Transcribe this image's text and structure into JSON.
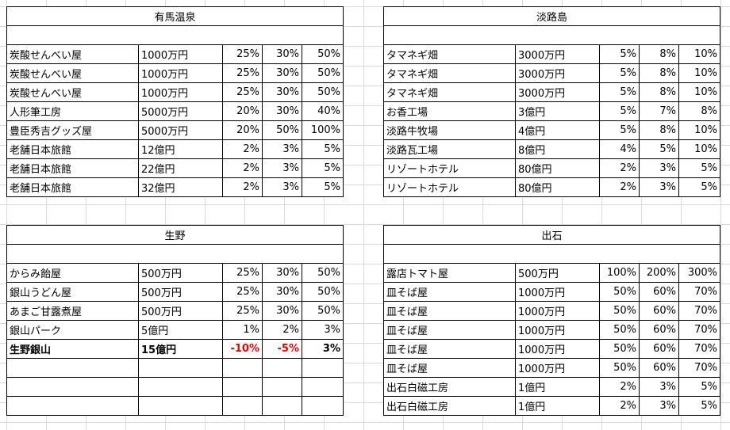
{
  "blocks": [
    {
      "id": "arima",
      "title": "有馬温泉",
      "rows": [
        {
          "name": "炭酸せんべい屋",
          "cost": "1000万円",
          "p1": "25%",
          "p2": "30%",
          "p3": "50%"
        },
        {
          "name": "炭酸せんべい屋",
          "cost": "1000万円",
          "p1": "25%",
          "p2": "30%",
          "p3": "50%"
        },
        {
          "name": "炭酸せんべい屋",
          "cost": "1000万円",
          "p1": "25%",
          "p2": "30%",
          "p3": "50%"
        },
        {
          "name": "人形筆工房",
          "cost": "5000万円",
          "p1": "20%",
          "p2": "30%",
          "p3": "40%"
        },
        {
          "name": "豊臣秀吉グッズ屋",
          "cost": "5000万円",
          "p1": "20%",
          "p2": "50%",
          "p3": "100%"
        },
        {
          "name": "老舗日本旅館",
          "cost": "12億円",
          "p1": "2%",
          "p2": "3%",
          "p3": "5%"
        },
        {
          "name": "老舗日本旅館",
          "cost": "22億円",
          "p1": "2%",
          "p2": "3%",
          "p3": "5%"
        },
        {
          "name": "老舗日本旅館",
          "cost": "32億円",
          "p1": "2%",
          "p2": "3%",
          "p3": "5%"
        }
      ]
    },
    {
      "id": "awaji",
      "title": "淡路島",
      "rows": [
        {
          "name": "タマネギ畑",
          "cost": "3000万円",
          "p1": "5%",
          "p2": "8%",
          "p3": "10%"
        },
        {
          "name": "タマネギ畑",
          "cost": "3000万円",
          "p1": "5%",
          "p2": "8%",
          "p3": "10%"
        },
        {
          "name": "タマネギ畑",
          "cost": "3000万円",
          "p1": "5%",
          "p2": "8%",
          "p3": "10%"
        },
        {
          "name": "お香工場",
          "cost": "3億円",
          "p1": "5%",
          "p2": "7%",
          "p3": "8%"
        },
        {
          "name": "淡路牛牧場",
          "cost": "4億円",
          "p1": "5%",
          "p2": "8%",
          "p3": "10%"
        },
        {
          "name": "淡路瓦工場",
          "cost": "8億円",
          "p1": "4%",
          "p2": "5%",
          "p3": "10%"
        },
        {
          "name": "リゾートホテル",
          "cost": "80億円",
          "p1": "2%",
          "p2": "3%",
          "p3": "5%"
        },
        {
          "name": "リゾートホテル",
          "cost": "80億円",
          "p1": "2%",
          "p2": "3%",
          "p3": "5%"
        }
      ]
    },
    {
      "id": "ikuno",
      "title": "生野",
      "rows": [
        {
          "name": "からみ飴屋",
          "cost": "500万円",
          "p1": "25%",
          "p2": "30%",
          "p3": "50%"
        },
        {
          "name": "銀山うどん屋",
          "cost": "500万円",
          "p1": "25%",
          "p2": "30%",
          "p3": "50%"
        },
        {
          "name": "あまご甘露煮屋",
          "cost": "500万円",
          "p1": "25%",
          "p2": "30%",
          "p3": "50%"
        },
        {
          "name": "銀山パーク",
          "cost": "5億円",
          "p1": "1%",
          "p2": "2%",
          "p3": "3%"
        },
        {
          "name": "生野銀山",
          "cost": "15億円",
          "p1": "-10%",
          "p2": "-5%",
          "p3": "3%"
        },
        {
          "name": "",
          "cost": "",
          "p1": "",
          "p2": "",
          "p3": ""
        },
        {
          "name": "",
          "cost": "",
          "p1": "",
          "p2": "",
          "p3": ""
        },
        {
          "name": "",
          "cost": "",
          "p1": "",
          "p2": "",
          "p3": ""
        }
      ]
    },
    {
      "id": "izushi",
      "title": "出石",
      "rows": [
        {
          "name": "露店トマト屋",
          "cost": "500万円",
          "p1": "100%",
          "p2": "200%",
          "p3": "300%"
        },
        {
          "name": "皿そば屋",
          "cost": "1000万円",
          "p1": "50%",
          "p2": "60%",
          "p3": "70%"
        },
        {
          "name": "皿そば屋",
          "cost": "1000万円",
          "p1": "50%",
          "p2": "60%",
          "p3": "70%"
        },
        {
          "name": "皿そば屋",
          "cost": "1000万円",
          "p1": "50%",
          "p2": "60%",
          "p3": "70%"
        },
        {
          "name": "皿そば屋",
          "cost": "1000万円",
          "p1": "50%",
          "p2": "60%",
          "p3": "70%"
        },
        {
          "name": "皿そば屋",
          "cost": "1000万円",
          "p1": "50%",
          "p2": "60%",
          "p3": "70%"
        },
        {
          "name": "出石白磁工房",
          "cost": "1億円",
          "p1": "2%",
          "p2": "3%",
          "p3": "5%"
        },
        {
          "name": "出石白磁工房",
          "cost": "1億円",
          "p1": "2%",
          "p2": "3%",
          "p3": "5%"
        }
      ]
    }
  ],
  "colors": {
    "negative": "#e00000",
    "gridline": "#dadada",
    "border": "#000000"
  }
}
